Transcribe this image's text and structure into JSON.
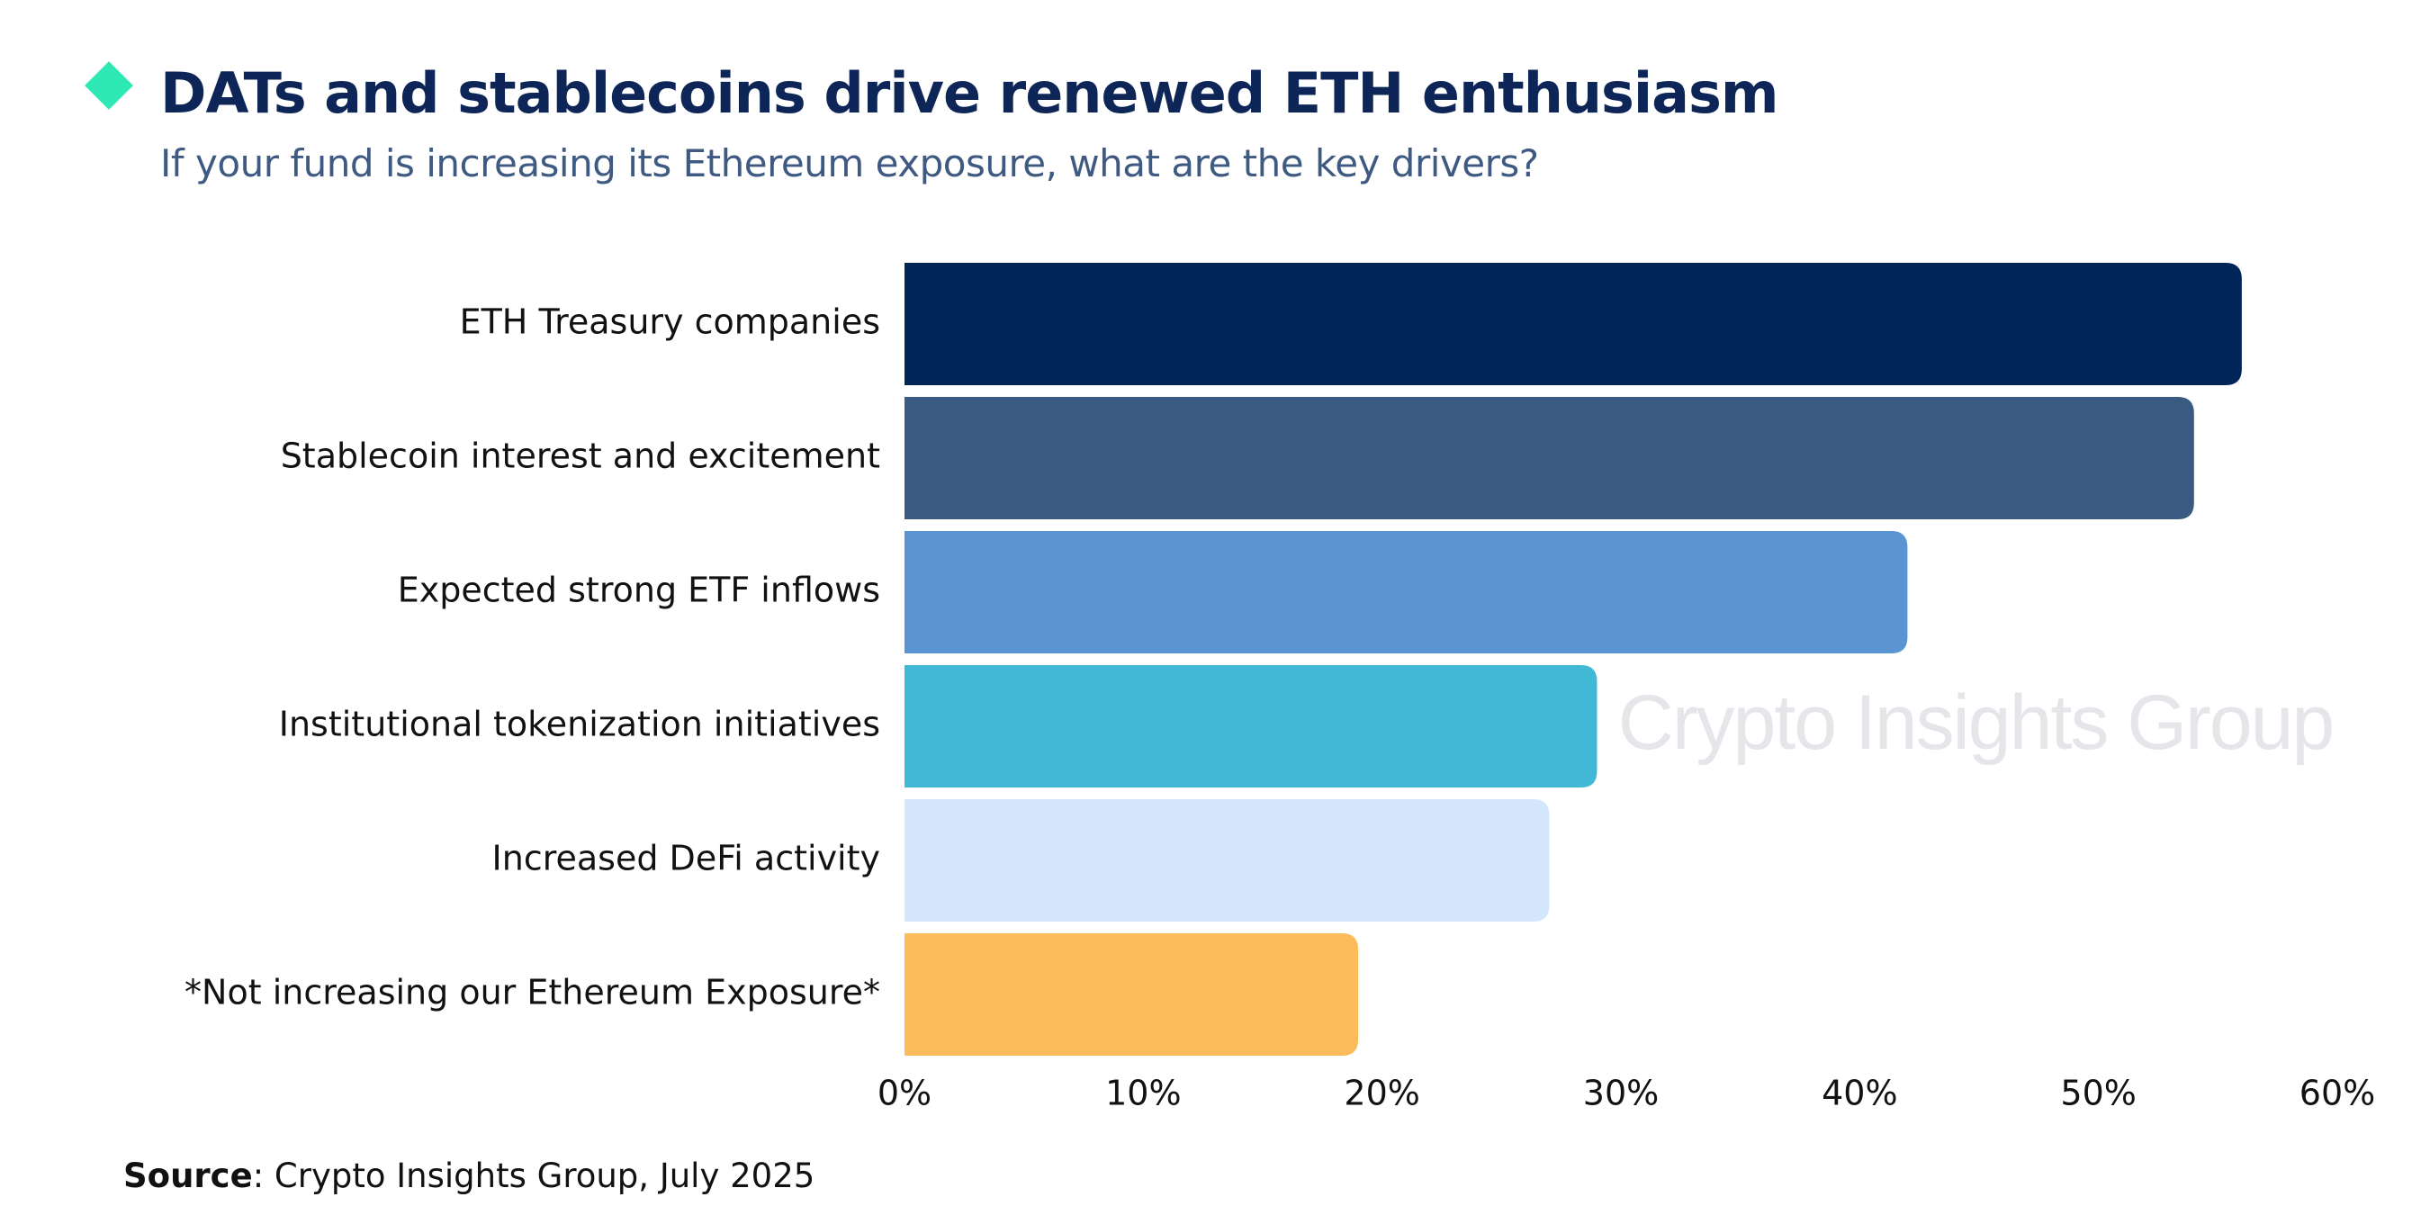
{
  "title": "DATs and stablecoins drive renewed ETH enthusiasm",
  "subtitle": "If your fund is increasing its Ethereum exposure, what are the key drivers?",
  "watermark": "Crypto Insights Group",
  "source": {
    "label": "Source",
    "text": ": Crypto Insights Group, July 2025"
  },
  "colors": {
    "title": "#0d2657",
    "subtitle": "#3f5a82",
    "diamond": "#2de8b4",
    "watermark": "#e4e6ea"
  },
  "chart_data": {
    "type": "bar",
    "orientation": "horizontal",
    "categories": [
      "ETH Treasury companies",
      "Stablecoin interest and excitement",
      "Expected strong ETF inflows",
      "Institutional tokenization initiatives",
      "Increased DeFi activity",
      "*Not increasing our Ethereum Exposure*"
    ],
    "values": [
      56,
      54,
      42,
      29,
      27,
      19
    ],
    "bar_colors": [
      "#022558",
      "#3a5b81",
      "#5b94d2",
      "#41b8d6",
      "#d3e6fc",
      "#fdbc5b"
    ],
    "xlim": [
      0,
      60
    ],
    "x_ticks": [
      "0%",
      "10%",
      "20%",
      "30%",
      "40%",
      "50%",
      "60%"
    ],
    "grid": false,
    "legend": "none",
    "unit": "%"
  }
}
